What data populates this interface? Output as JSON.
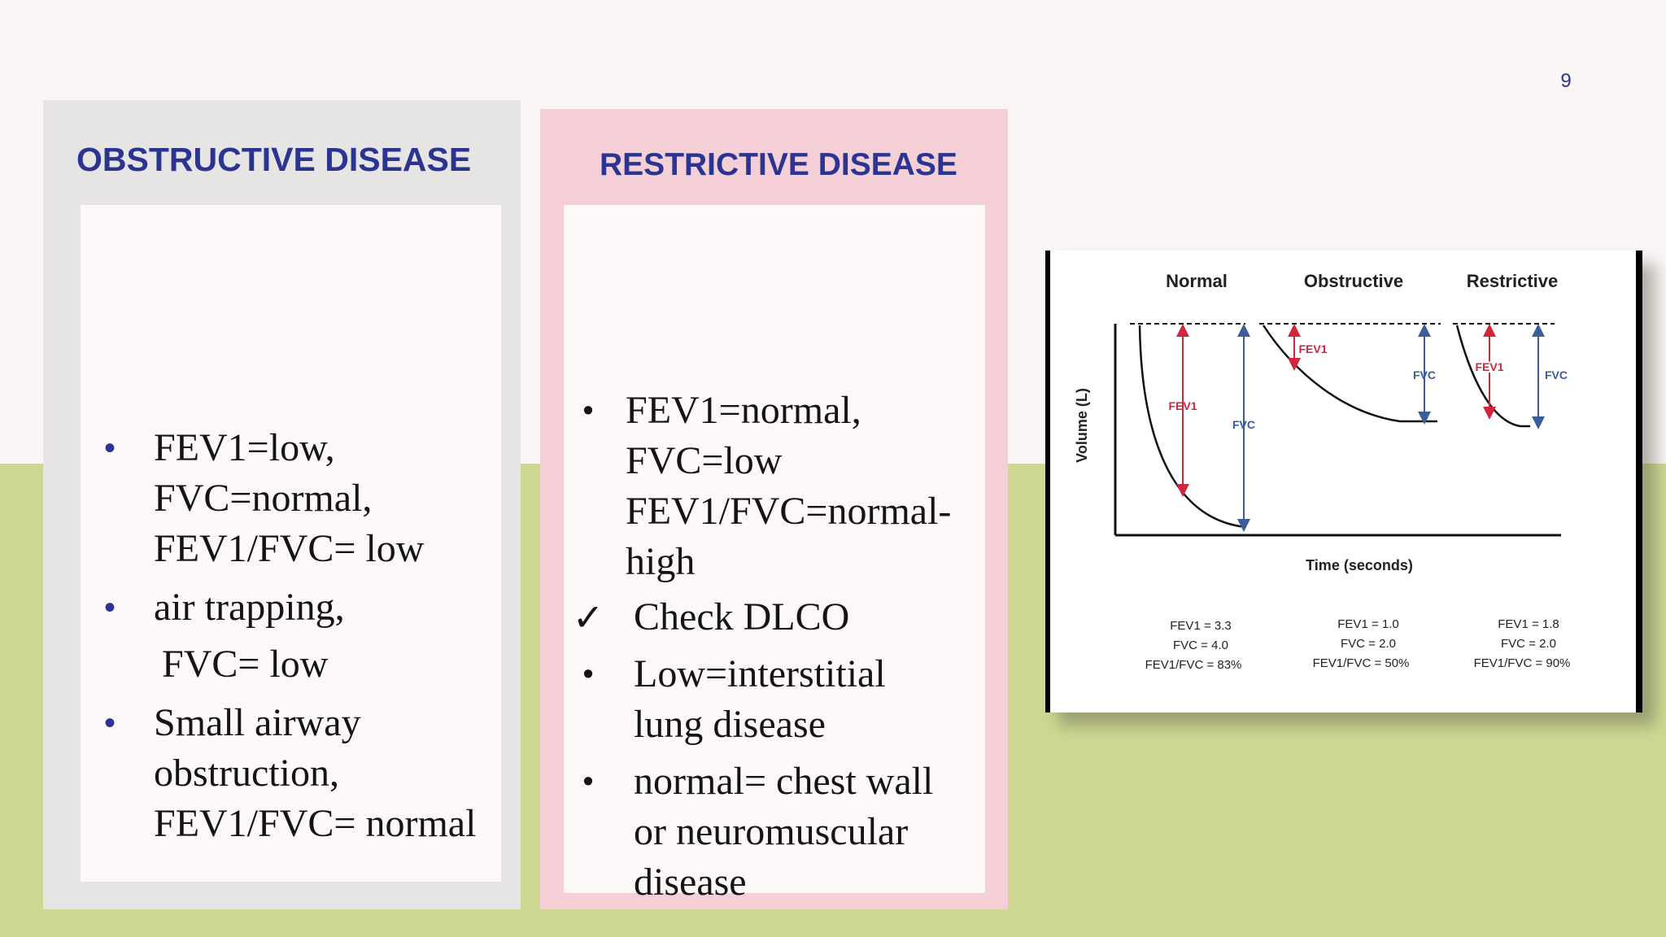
{
  "page_number": "9",
  "obstructive": {
    "title": "OBSTRUCTIVE DISEASE",
    "items": [
      {
        "lines": [
          "FEV1=low,",
          "FVC=normal,",
          "FEV1/FVC= low"
        ]
      },
      {
        "lines": [
          "air trapping,"
        ],
        "sub": "FVC= low"
      },
      {
        "lines": [
          "Small airway",
          "obstruction,",
          "FEV1/FVC= normal"
        ]
      }
    ]
  },
  "restrictive": {
    "title": "RESTRICTIVE DISEASE",
    "items": [
      {
        "marker": "•",
        "lines": [
          "FEV1=normal,",
          "FVC=low",
          "FEV1/FVC=normal-",
          "high"
        ]
      },
      {
        "marker": "✓",
        "lines": [
          "Check DLCO"
        ]
      },
      {
        "marker": "•",
        "lines": [
          "Low=interstitial",
          "lung disease"
        ]
      },
      {
        "marker": "•",
        "lines": [
          "normal= chest wall",
          "or neuromuscular",
          "disease"
        ]
      }
    ]
  },
  "spirometry_figure": {
    "panel_titles": [
      "Normal",
      "Obstructive",
      "Restrictive"
    ],
    "y_axis_label": "Volume (L)",
    "x_axis_label": "Time (seconds)",
    "arrow_labels": {
      "fev1": "FEV1",
      "fvc": "FVC"
    },
    "colors": {
      "fev1": "#d3253b",
      "fvc": "#3b5d9c"
    },
    "stats": [
      {
        "fev1": "FEV1 = 3.3",
        "fvc": "FVC   = 4.0",
        "ratio": "FEV1/FVC = 83%"
      },
      {
        "fev1": "FEV1 = 1.0",
        "fvc": "FVC   = 2.0",
        "ratio": "FEV1/FVC = 50%"
      },
      {
        "fev1": "FEV1 = 1.8",
        "fvc": "FVC   = 2.0",
        "ratio": "FEV1/FVC = 90%"
      }
    ]
  }
}
